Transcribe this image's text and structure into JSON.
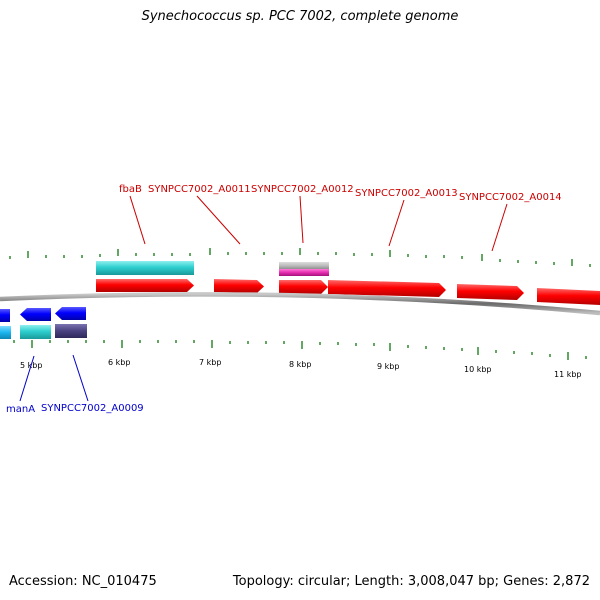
{
  "title": "Synechococcus sp. PCC 7002, complete genome",
  "footer": {
    "accession": "Accession: NC_010475",
    "summary": "Topology: circular; Length: 3,008,047 bp; Genes: 2,872"
  },
  "colors": {
    "forward_label": "#cc0000",
    "reverse_label": "#0000cc",
    "tick": "#2d8a2d",
    "backbone": "#7a7a7a"
  },
  "scale": {
    "labels": [
      "5 kbp",
      "6 kbp",
      "7 kbp",
      "8 kbp",
      "9 kbp",
      "10 kbp",
      "11 kbp"
    ]
  },
  "genes": {
    "forward": [
      "fbaB",
      "SYNPCC7002_A0011",
      "SYNPCC7002_A0012",
      "SYNPCC7002_A0013",
      "SYNPCC7002_A0014"
    ],
    "reverse": [
      "manA",
      "SYNPCC7002_A0009"
    ]
  }
}
